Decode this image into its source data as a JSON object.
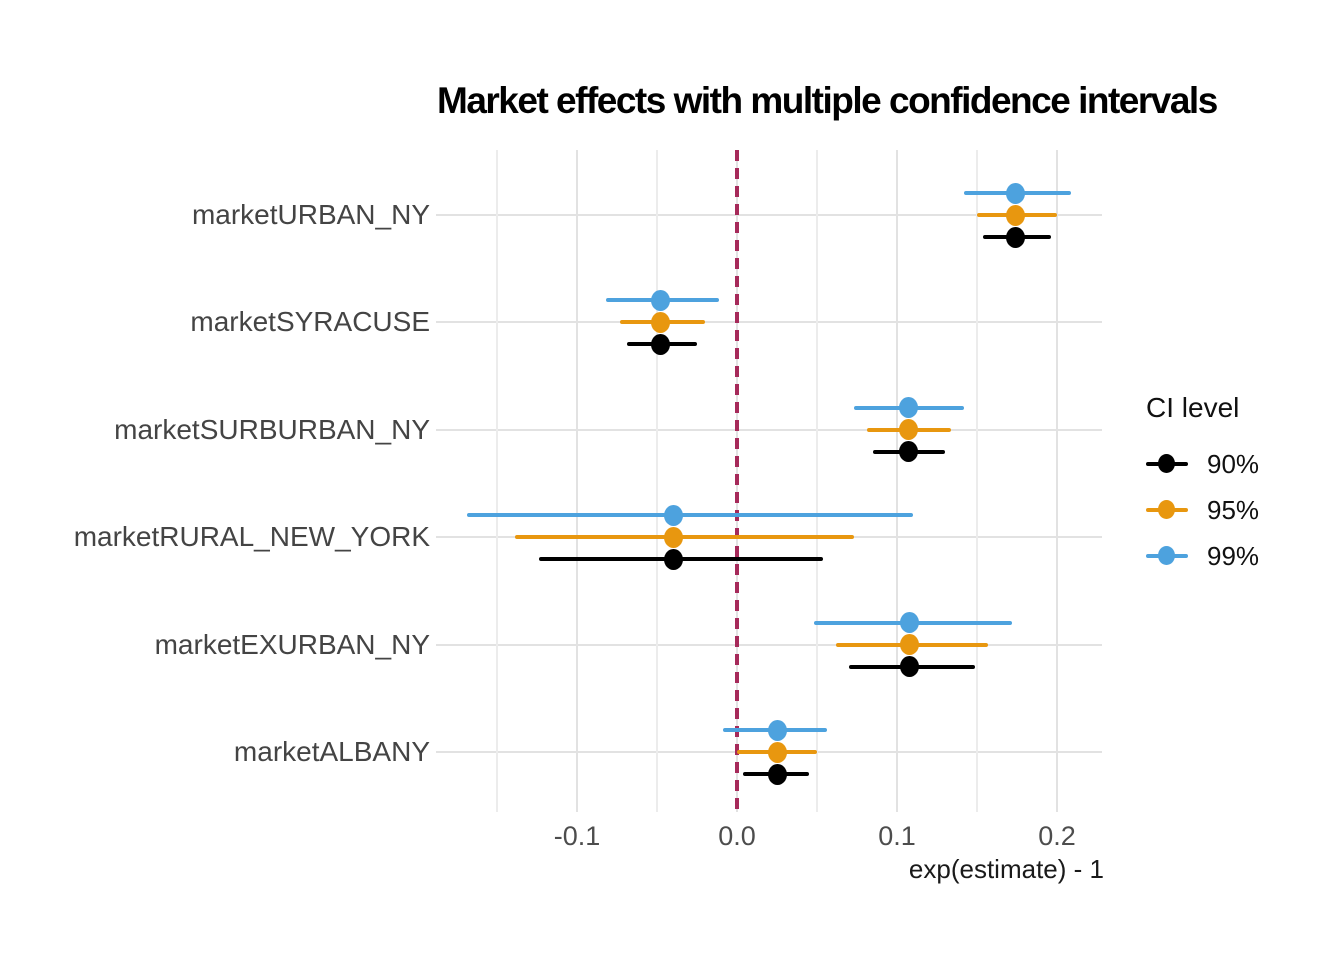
{
  "chart_data": {
    "type": "scatter",
    "mark": "dot-and-whisker-coefficient-plot",
    "title": "Market effects with multiple confidence intervals",
    "xlabel": "exp(estimate) - 1",
    "ylabel": "",
    "categories": [
      "marketURBAN_NY",
      "marketSYRACUSE",
      "marketSURBURBAN_NY",
      "marketRURAL_NEW_YORK",
      "marketEXURBAN_NY",
      "marketALBANY"
    ],
    "estimates": [
      0.174,
      -0.048,
      0.107,
      -0.04,
      0.108,
      0.025
    ],
    "series": [
      {
        "name": "90%",
        "color": "#000000",
        "intervals": [
          [
            0.154,
            0.196
          ],
          [
            -0.069,
            -0.025
          ],
          [
            0.085,
            0.13
          ],
          [
            -0.124,
            0.054
          ],
          [
            0.07,
            0.149
          ],
          [
            0.004,
            0.045
          ]
        ]
      },
      {
        "name": "95%",
        "color": "#E8970F",
        "intervals": [
          [
            0.15,
            0.2
          ],
          [
            -0.073,
            -0.02
          ],
          [
            0.081,
            0.134
          ],
          [
            -0.139,
            0.073
          ],
          [
            0.062,
            0.157
          ],
          [
            0.0,
            0.05
          ]
        ]
      },
      {
        "name": "99%",
        "color": "#4DA2DE",
        "intervals": [
          [
            0.142,
            0.209
          ],
          [
            -0.082,
            -0.011
          ],
          [
            0.073,
            0.142
          ],
          [
            -0.169,
            0.11
          ],
          [
            0.048,
            0.172
          ],
          [
            -0.009,
            0.056
          ]
        ]
      }
    ],
    "xticks": [
      -0.1,
      0.0,
      0.1,
      0.2
    ],
    "xtick_labels": [
      "-0.1",
      "0.0",
      "0.1",
      "0.2"
    ],
    "xticks_minor": [
      -0.15,
      -0.05,
      0.05,
      0.15
    ],
    "xlim": [
      -0.188,
      0.228
    ],
    "reference_line": {
      "x": 0.0,
      "color": "#A62A5A",
      "style": "dashed"
    },
    "legend": {
      "title": "CI level",
      "position": "right",
      "entries": [
        "90%",
        "95%",
        "99%"
      ]
    },
    "grid": {
      "show": true,
      "major_color": "#E2E2E2",
      "minor_color": "#ECECEC"
    },
    "background": "#FFFFFF"
  }
}
